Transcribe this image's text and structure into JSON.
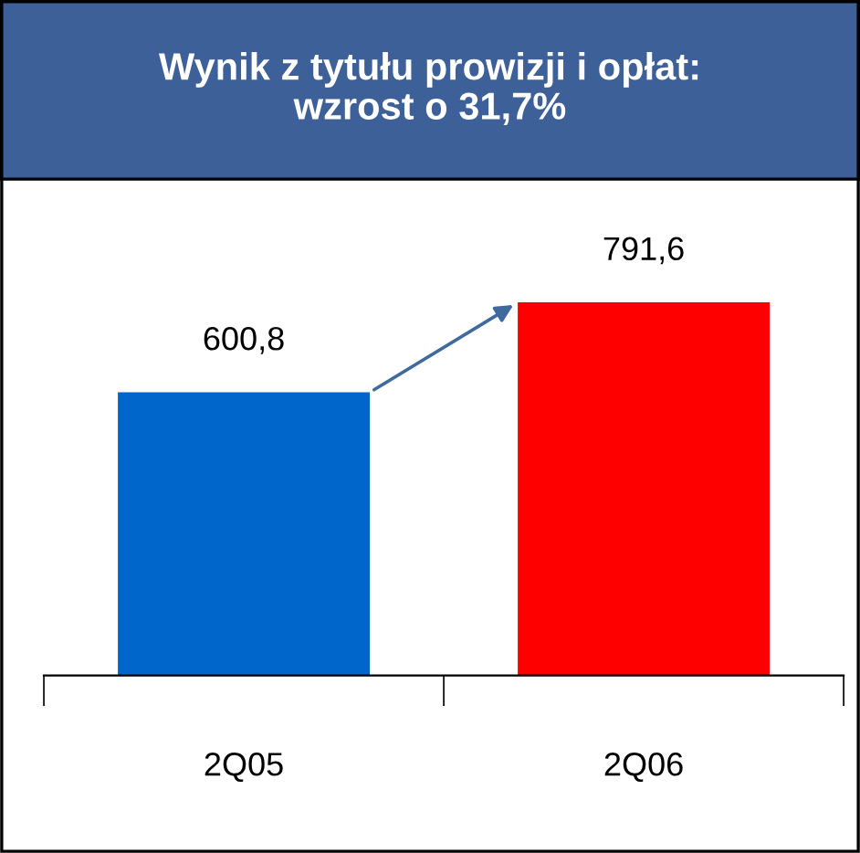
{
  "chart_data": {
    "type": "bar",
    "title": "Wynik z tytułu prowizji i opłat:\nwzrost o 31,7%",
    "categories": [
      "2Q05",
      "2Q06"
    ],
    "values": [
      600.8,
      791.6
    ],
    "colors": [
      "#0066cc",
      "#ff0000"
    ],
    "value_labels": [
      "600,8",
      "791,6"
    ],
    "grid": false,
    "legend": false
  }
}
